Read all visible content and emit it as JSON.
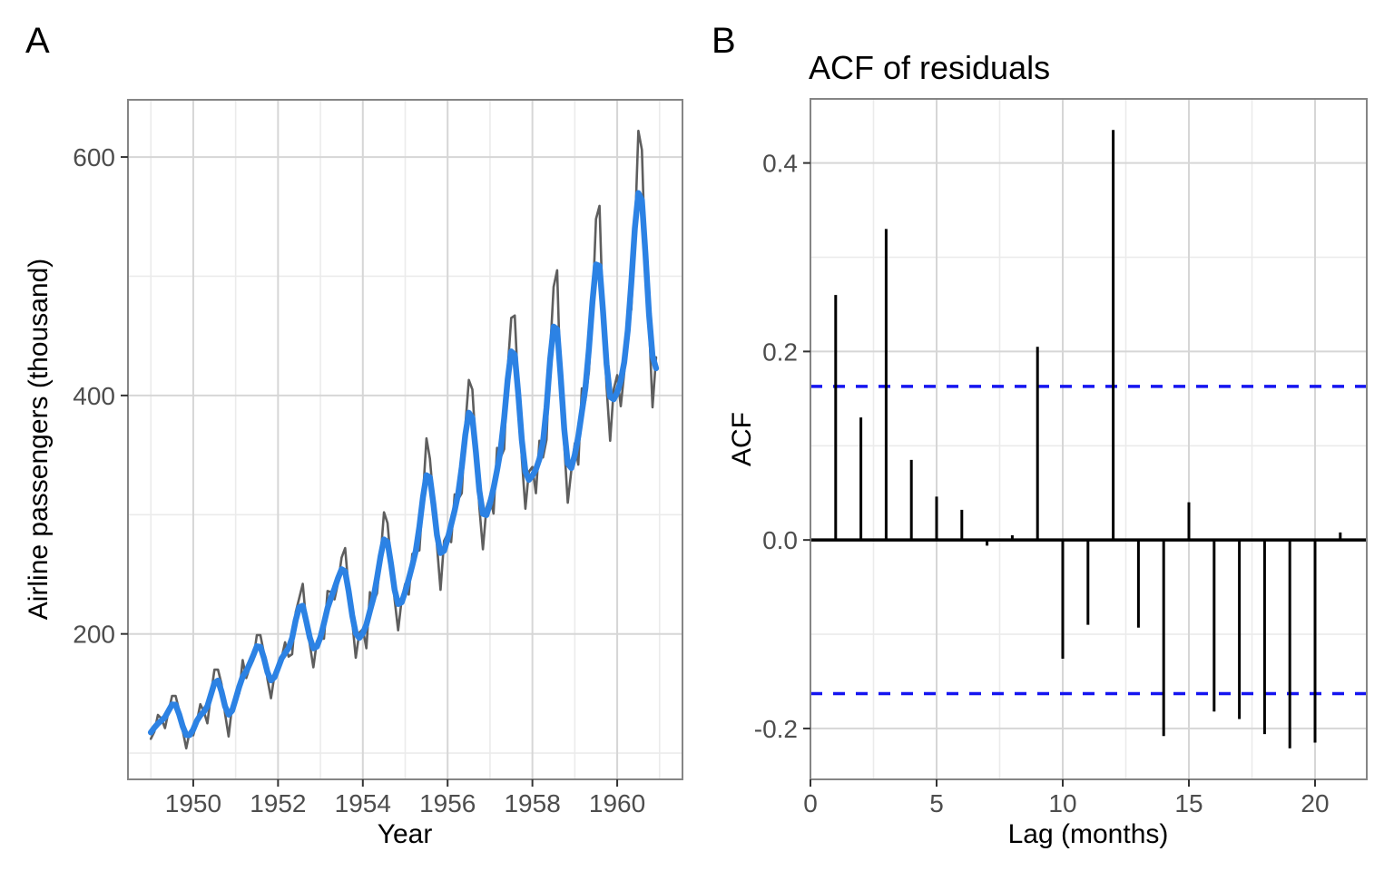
{
  "chart_data": [
    {
      "type": "line",
      "panel_label": "A",
      "title": "",
      "xlabel": "Year",
      "ylabel": "Airline passengers (thousand)",
      "x_domain": [
        1948.46,
        1961.54
      ],
      "y_domain": [
        78,
        648
      ],
      "x_major_ticks": [
        1950,
        1952,
        1954,
        1956,
        1958,
        1960
      ],
      "x_tick_labels": [
        "1950",
        "1952",
        "1954",
        "1956",
        "1958",
        "1960"
      ],
      "x_minor_ticks": [
        1949,
        1951,
        1953,
        1955,
        1957,
        1959,
        1961
      ],
      "y_major_ticks": [
        200,
        400,
        600
      ],
      "y_tick_labels": [
        "200",
        "400",
        "600"
      ],
      "y_minor_ticks": [
        100,
        300,
        500
      ],
      "grid": true,
      "legend": "none",
      "series": [
        {
          "name": "observed",
          "color": "#5E5E5E",
          "line_width": 2.6,
          "start_year": 1949,
          "frequency_per_year": 12,
          "values": [
            112,
            118,
            132,
            129,
            121,
            135,
            148,
            148,
            136,
            119,
            104,
            118,
            115,
            126,
            141,
            135,
            125,
            149,
            170,
            170,
            158,
            133,
            114,
            140,
            145,
            150,
            178,
            163,
            172,
            178,
            199,
            199,
            184,
            162,
            146,
            166,
            171,
            180,
            193,
            181,
            183,
            218,
            230,
            242,
            209,
            191,
            172,
            194,
            196,
            196,
            236,
            235,
            229,
            243,
            264,
            272,
            237,
            211,
            180,
            201,
            204,
            188,
            235,
            227,
            234,
            264,
            302,
            293,
            259,
            229,
            203,
            229,
            242,
            233,
            267,
            269,
            270,
            315,
            364,
            347,
            312,
            274,
            237,
            278,
            284,
            277,
            317,
            313,
            318,
            374,
            413,
            405,
            355,
            306,
            271,
            306,
            315,
            301,
            356,
            348,
            355,
            422,
            465,
            467,
            404,
            347,
            305,
            336,
            340,
            318,
            362,
            348,
            363,
            435,
            491,
            505,
            404,
            359,
            310,
            337,
            360,
            342,
            406,
            396,
            420,
            472,
            548,
            559,
            463,
            407,
            362,
            405,
            417,
            391,
            419,
            461,
            472,
            535,
            622,
            606,
            508,
            461,
            390,
            432
          ]
        },
        {
          "name": "fitted (smoothed)",
          "color": "#2C82E4",
          "line_width": 6.5,
          "derived_from": "observed",
          "smoothing_weights": [
            1,
            2,
            3,
            2,
            1
          ]
        }
      ]
    },
    {
      "type": "bar",
      "panel_label": "B",
      "title": "ACF of residuals",
      "xlabel": "Lag (months)",
      "ylabel": "ACF",
      "x_domain": [
        0,
        22.05
      ],
      "y_domain": [
        -0.254,
        0.468
      ],
      "x_major_ticks": [
        0,
        5,
        10,
        15,
        20
      ],
      "x_tick_labels": [
        "0",
        "5",
        "10",
        "15",
        "20"
      ],
      "x_minor_ticks": [
        2.5,
        7.5,
        12.5,
        17.5
      ],
      "y_major_ticks": [
        0.4,
        0.2,
        0.0,
        -0.2
      ],
      "y_tick_labels": [
        "0.4",
        "0.2",
        "0.0",
        "-0.2"
      ],
      "y_minor_ticks": [
        0.3,
        0.1,
        -0.1
      ],
      "grid": true,
      "lags": [
        1,
        2,
        3,
        4,
        5,
        6,
        7,
        8,
        9,
        10,
        11,
        12,
        13,
        14,
        15,
        16,
        17,
        18,
        19,
        20,
        21
      ],
      "acf_values": [
        0.26,
        0.13,
        0.33,
        0.085,
        0.046,
        0.032,
        -0.006,
        0.005,
        0.205,
        -0.126,
        -0.09,
        0.435,
        -0.093,
        -0.208,
        0.04,
        -0.182,
        -0.19,
        -0.206,
        -0.221,
        -0.215,
        0.008
      ],
      "ci_bounds": [
        0.163,
        -0.163
      ],
      "colors": {
        "bar": "#000000",
        "zero_line": "#000000",
        "ci_line": "#1515F0"
      }
    }
  ],
  "style": {
    "grid_major_color": "#D6D6D6",
    "grid_minor_color": "#EBEBEB",
    "panel_border_color": "#858585",
    "tick_mark_color": "#333333",
    "tick_label_color": "#4d4d4d"
  }
}
